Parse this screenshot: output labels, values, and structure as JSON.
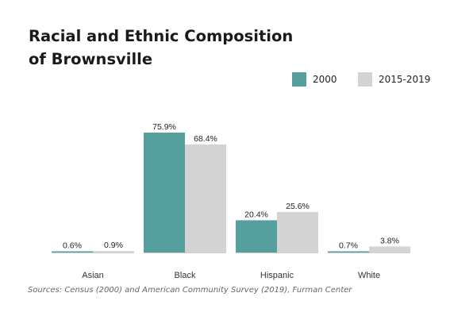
{
  "title_line1": "Racial and Ethnic Composition",
  "title_line2": "of Brownsville",
  "source": "Sources: Census (2000) and American Community Survey (2019), Furman Center",
  "colors": {
    "series_2000": "#569f9f",
    "series_2015_2019": "#d3d3d3"
  },
  "chart_data": {
    "type": "bar",
    "categories": [
      "Asian",
      "Black",
      "Hispanic",
      "White"
    ],
    "series": [
      {
        "name": "2000",
        "values": [
          0.6,
          75.9,
          20.4,
          0.7
        ],
        "labels": [
          "0.6%",
          "75.9%",
          "20.4%",
          "0.7%"
        ]
      },
      {
        "name": "2015-2019",
        "values": [
          0.9,
          68.4,
          25.6,
          3.8
        ],
        "labels": [
          "0.9%",
          "68.4%",
          "25.6%",
          "3.8%"
        ]
      }
    ],
    "ylim": [
      0,
      75.9
    ],
    "grid": false,
    "legend": "top-right"
  }
}
